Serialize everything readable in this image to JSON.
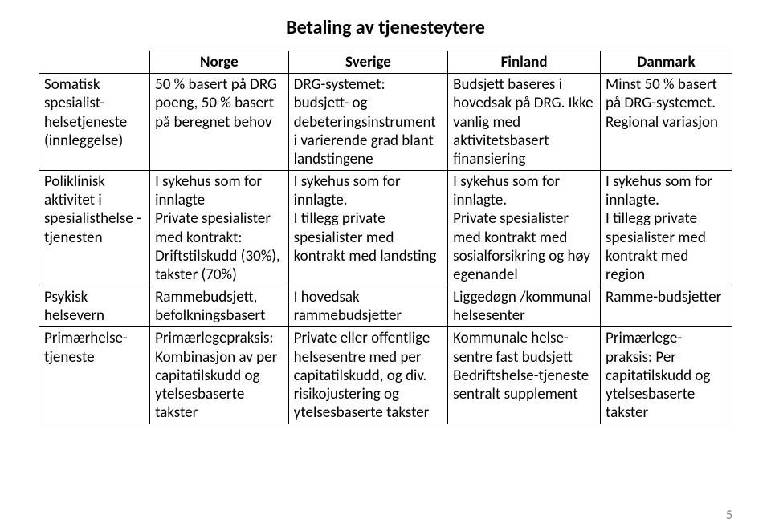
{
  "title": "Betaling av tjenesteytere",
  "title_fontsize": "24px",
  "page_number": "5",
  "headers": {
    "col1": "Norge",
    "col2": "Sverige",
    "col3": "Finland",
    "col4": "Danmark"
  },
  "rows": [
    {
      "label": "Somatisk spesialist-helsetjeneste (innleggelse)",
      "norge": "50 % basert på DRG poeng, 50 % basert på beregnet behov",
      "sverige": "DRG-systemet: budsjett- og debeteringsinstrument i varierende grad blant landstingene",
      "finland": "Budsjett baseres i hovedsak på DRG. Ikke vanlig med aktivitetsbasert finansiering",
      "danmark": "Minst 50 % basert på DRG-systemet. Regional variasjon"
    },
    {
      "label": "Poliklinisk aktivitet i spesialisthelse -tjenesten",
      "norge": "I sykehus som for innlagte\nPrivate spesialister med kontrakt: Driftstilskudd (30%), takster (70%)",
      "sverige": "I sykehus som for innlagte.\nI tillegg private spesialister med kontrakt med landsting",
      "finland": "I sykehus som for innlagte.\nPrivate spesialister med kontrakt med sosialforsikring og høy egenandel",
      "danmark": "I sykehus som for innlagte.\nI tillegg private spesialister med kontrakt med region"
    },
    {
      "label": "Psykisk helsevern",
      "norge": "Rammebudsjett, befolkningsbasert",
      "sverige": "I hovedsak rammebudsjetter",
      "finland": "Liggedøgn /kommunal helsesenter",
      "danmark": "Ramme-budsjetter"
    },
    {
      "label": "Primærhelse-tjeneste",
      "norge": "Primærlegepraksis: Kombinasjon av per capitatilskudd og ytelsesbaserte takster",
      "sverige": "Private eller offentlige helsesentre med per capitatilskudd, og div. risikojustering og ytelsesbaserte takster",
      "finland": "Kommunale helse-sentre fast budsjett Bedriftshelse-tjeneste sentralt supplement",
      "danmark": "Primærlege-praksis: Per capitatilskudd og ytelsesbaserte takster"
    }
  ]
}
